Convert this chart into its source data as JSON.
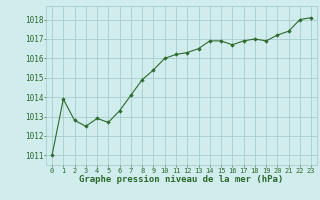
{
  "x": [
    0,
    1,
    2,
    3,
    4,
    5,
    6,
    7,
    8,
    9,
    10,
    11,
    12,
    13,
    14,
    15,
    16,
    17,
    18,
    19,
    20,
    21,
    22,
    23
  ],
  "y": [
    1011.0,
    1013.9,
    1012.8,
    1012.5,
    1012.9,
    1012.7,
    1013.3,
    1014.1,
    1014.9,
    1015.4,
    1016.0,
    1016.2,
    1016.3,
    1016.5,
    1016.9,
    1016.9,
    1016.7,
    1016.9,
    1017.0,
    1016.9,
    1017.2,
    1017.4,
    1018.0,
    1018.1
  ],
  "line_color": "#2d6a2d",
  "marker_color": "#2d6a2d",
  "bg_color": "#d0ecec",
  "grid_color": "#a0c8c8",
  "xlabel": "Graphe pression niveau de la mer (hPa)",
  "xlabel_color": "#2d6a2d",
  "xlabel_fontsize": 6.5,
  "ylabel_ticks": [
    1011,
    1012,
    1013,
    1014,
    1015,
    1016,
    1017,
    1018
  ],
  "xtick_labels": [
    "0",
    "1",
    "2",
    "3",
    "4",
    "5",
    "6",
    "7",
    "8",
    "9",
    "10",
    "11",
    "12",
    "13",
    "14",
    "15",
    "16",
    "17",
    "18",
    "19",
    "20",
    "21",
    "22",
    "23"
  ],
  "ylim": [
    1010.5,
    1018.7
  ],
  "xlim": [
    -0.5,
    23.5
  ],
  "tick_color": "#2d6a2d",
  "ytick_fontsize": 5.5,
  "xtick_fontsize": 5.0
}
